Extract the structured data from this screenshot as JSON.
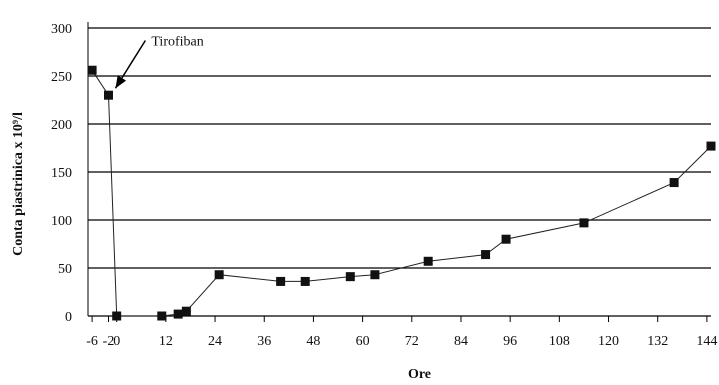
{
  "chart_data": {
    "type": "line",
    "xlabel": "Ore",
    "ylabel": "Conta piastrinica  x  10⁹/l",
    "ylim": [
      0,
      300
    ],
    "xlim": [
      -7,
      145
    ],
    "yticks": [
      0,
      50,
      100,
      150,
      200,
      250,
      300
    ],
    "xticks": [
      -6,
      -2,
      0,
      12,
      24,
      36,
      48,
      60,
      72,
      84,
      96,
      108,
      120,
      132,
      144
    ],
    "grid": true,
    "series": [
      {
        "x": [
          -6,
          -2,
          0,
          11,
          15,
          17,
          25,
          40,
          46,
          57,
          63,
          76,
          90,
          95,
          114,
          136,
          145
        ],
        "y": [
          256,
          230,
          0,
          0,
          2,
          5,
          43,
          36,
          36,
          41,
          43,
          57,
          64,
          80,
          97,
          139,
          177
        ]
      }
    ],
    "annotations": [
      {
        "text": "Tirofiban",
        "x": -2,
        "y": 230
      }
    ]
  }
}
